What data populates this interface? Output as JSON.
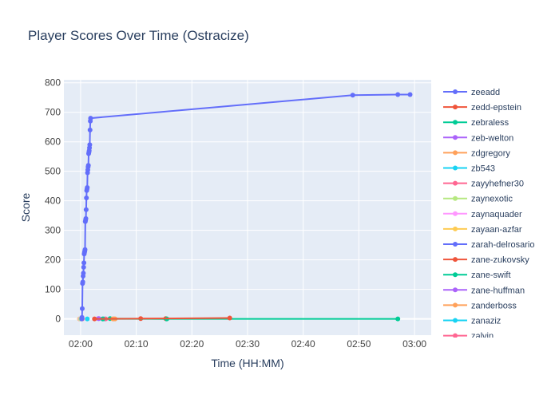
{
  "colors": {
    "plot_bg": "#E5ECF6",
    "grid": "#ffffff",
    "text": "#2a3f5f",
    "tick_text": "#444444"
  },
  "chart_data": {
    "type": "line",
    "title": "Player Scores Over Time (Ostracize)",
    "xlabel": "Time (HH:MM)",
    "ylabel": "Score",
    "x_range_minutes": [
      117.0,
      183.0
    ],
    "ylim": [
      -55,
      810
    ],
    "x_ticks": [
      {
        "minute": 120,
        "label": "02:00"
      },
      {
        "minute": 130,
        "label": "02:10"
      },
      {
        "minute": 140,
        "label": "02:20"
      },
      {
        "minute": 150,
        "label": "02:30"
      },
      {
        "minute": 160,
        "label": "02:40"
      },
      {
        "minute": 170,
        "label": "02:50"
      },
      {
        "minute": 180,
        "label": "03:00"
      }
    ],
    "y_ticks": [
      0,
      100,
      200,
      300,
      400,
      500,
      600,
      700,
      800
    ],
    "grid": true,
    "legend_position": "right (vertical, scrollable)",
    "series": [
      {
        "name": "zeeadd",
        "color": "#636EFA",
        "x_minutes": [
          120.2,
          120.25,
          120.3,
          120.35,
          120.4,
          120.45,
          120.5,
          120.55,
          120.6,
          120.65,
          120.7,
          120.75,
          120.8,
          120.85,
          120.9,
          120.95,
          121.0,
          121.05,
          121.1,
          121.15,
          121.2,
          121.25,
          121.3,
          121.35,
          121.4,
          121.45,
          121.5,
          121.55,
          121.6,
          121.65,
          121.7,
          121.75,
          121.8,
          168.9,
          177.0,
          179.2
        ],
        "y": [
          0,
          5,
          35,
          120,
          125,
          145,
          155,
          175,
          190,
          220,
          225,
          230,
          235,
          330,
          335,
          340,
          370,
          410,
          435,
          440,
          445,
          495,
          505,
          515,
          520,
          560,
          565,
          570,
          580,
          590,
          640,
          670,
          680,
          758,
          760,
          760
        ]
      },
      {
        "name": "zedd-epstein",
        "color": "#EF553B",
        "x_minutes": [
          122.5,
          146.8
        ],
        "y": [
          0,
          3
        ]
      },
      {
        "name": "zebraless",
        "color": "#00CC96",
        "x_minutes": [
          124.0,
          135.5,
          177.0
        ],
        "y": [
          0,
          0,
          0
        ]
      },
      {
        "name": "zeb-welton",
        "color": "#AB63FA",
        "x_minutes": [
          123.3
        ],
        "y": [
          1
        ]
      },
      {
        "name": "zdgregory",
        "color": "#FFA15A",
        "x_minutes": [
          125.8,
          126.2
        ],
        "y": [
          0,
          0
        ]
      },
      {
        "name": "zb543",
        "color": "#19D3F3",
        "x_minutes": [
          121.2
        ],
        "y": [
          0
        ]
      },
      {
        "name": "zayyhefner30",
        "color": "#FF6692",
        "x_minutes": [
          124.5
        ],
        "y": [
          0
        ]
      },
      {
        "name": "zaynexotic",
        "color": "#B6E880",
        "x_minutes": [
          120.0
        ],
        "y": [
          0
        ]
      },
      {
        "name": "zaynaquader",
        "color": "#FF97FF",
        "x_minutes": [
          119.9
        ],
        "y": [
          0
        ]
      },
      {
        "name": "zayaan-azfar",
        "color": "#FECB52",
        "x_minutes": [
          119.8
        ],
        "y": [
          0
        ]
      },
      {
        "name": "zarah-delrosario",
        "color": "#636EFA",
        "x_minutes": [
          120.1
        ],
        "y": [
          0
        ]
      },
      {
        "name": "zane-zukovsky",
        "color": "#EF553B",
        "x_minutes": [
          130.8,
          135.3
        ],
        "y": [
          1,
          1
        ]
      },
      {
        "name": "zane-swift",
        "color": "#00CC96",
        "x_minutes": [
          125.3,
          135.4
        ],
        "y": [
          1,
          0
        ]
      },
      {
        "name": "zane-huffman",
        "color": "#AB63FA",
        "x_minutes": [
          123.2
        ],
        "y": [
          1
        ]
      },
      {
        "name": "zanderboss",
        "color": "#FFA15A",
        "x_minutes": [
          126.0
        ],
        "y": [
          0
        ]
      },
      {
        "name": "zanaziz",
        "color": "#19D3F3",
        "x_minutes": [
          124.2
        ],
        "y": [
          0
        ]
      },
      {
        "name": "zalvin",
        "color": "#FF6692",
        "x_minutes": [
          120.3
        ],
        "y": [
          0
        ]
      }
    ]
  }
}
